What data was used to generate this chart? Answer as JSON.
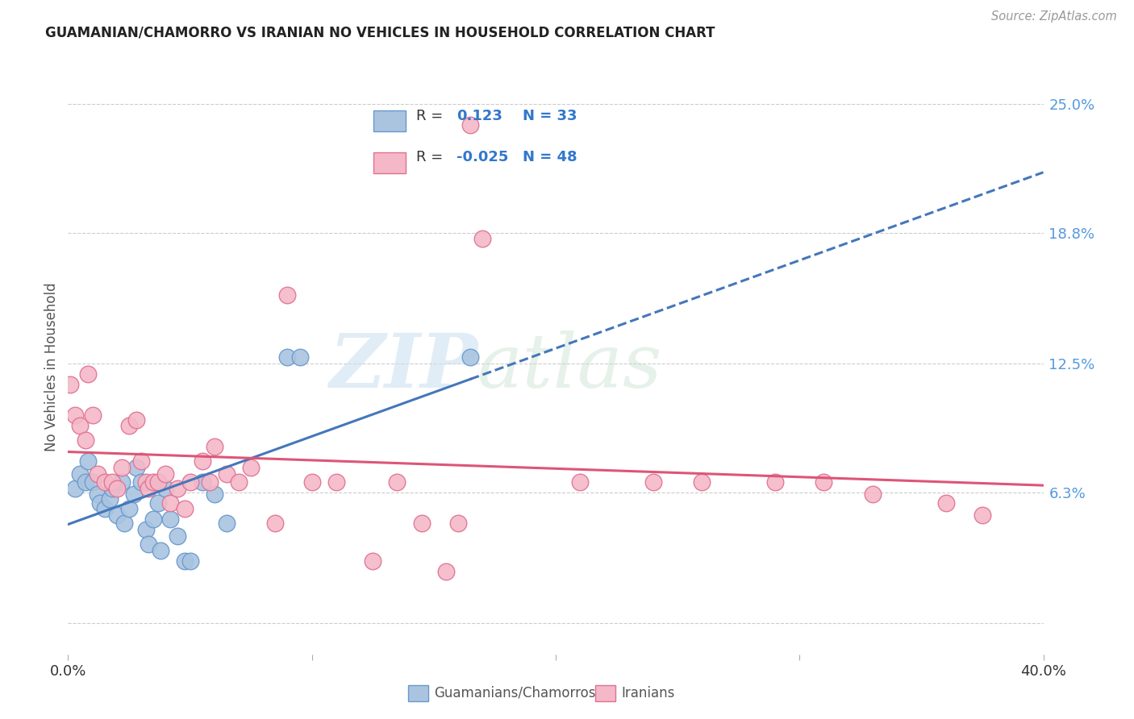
{
  "title": "GUAMANIAN/CHAMORRO VS IRANIAN NO VEHICLES IN HOUSEHOLD CORRELATION CHART",
  "source": "Source: ZipAtlas.com",
  "ylabel": "No Vehicles in Household",
  "yticks": [
    0.0,
    0.063,
    0.125,
    0.188,
    0.25
  ],
  "ytick_labels": [
    "",
    "6.3%",
    "12.5%",
    "18.8%",
    "25.0%"
  ],
  "watermark_zip": "ZIP",
  "watermark_atlas": "atlas",
  "blue_color": "#aac4e0",
  "pink_color": "#f4b8c8",
  "blue_edge_color": "#6699cc",
  "pink_edge_color": "#e07090",
  "blue_line_color": "#4477bb",
  "pink_line_color": "#dd5577",
  "xmin": 0.0,
  "xmax": 0.4,
  "ymin": -0.015,
  "ymax": 0.262,
  "background_color": "#ffffff",
  "grid_color": "#cccccc",
  "blue_scatter": [
    [
      0.003,
      0.065
    ],
    [
      0.005,
      0.072
    ],
    [
      0.007,
      0.068
    ],
    [
      0.008,
      0.078
    ],
    [
      0.01,
      0.068
    ],
    [
      0.012,
      0.062
    ],
    [
      0.013,
      0.058
    ],
    [
      0.015,
      0.055
    ],
    [
      0.017,
      0.06
    ],
    [
      0.018,
      0.065
    ],
    [
      0.02,
      0.052
    ],
    [
      0.022,
      0.068
    ],
    [
      0.023,
      0.048
    ],
    [
      0.025,
      0.055
    ],
    [
      0.027,
      0.062
    ],
    [
      0.028,
      0.075
    ],
    [
      0.03,
      0.068
    ],
    [
      0.032,
      0.045
    ],
    [
      0.033,
      0.038
    ],
    [
      0.035,
      0.05
    ],
    [
      0.037,
      0.058
    ],
    [
      0.038,
      0.035
    ],
    [
      0.04,
      0.065
    ],
    [
      0.042,
      0.05
    ],
    [
      0.045,
      0.042
    ],
    [
      0.048,
      0.03
    ],
    [
      0.05,
      0.03
    ],
    [
      0.055,
      0.068
    ],
    [
      0.06,
      0.062
    ],
    [
      0.065,
      0.048
    ],
    [
      0.09,
      0.128
    ],
    [
      0.095,
      0.128
    ],
    [
      0.165,
      0.128
    ]
  ],
  "pink_scatter": [
    [
      0.001,
      0.115
    ],
    [
      0.003,
      0.1
    ],
    [
      0.005,
      0.095
    ],
    [
      0.007,
      0.088
    ],
    [
      0.008,
      0.12
    ],
    [
      0.01,
      0.1
    ],
    [
      0.012,
      0.072
    ],
    [
      0.015,
      0.068
    ],
    [
      0.018,
      0.068
    ],
    [
      0.02,
      0.065
    ],
    [
      0.022,
      0.075
    ],
    [
      0.025,
      0.095
    ],
    [
      0.028,
      0.098
    ],
    [
      0.03,
      0.078
    ],
    [
      0.032,
      0.068
    ],
    [
      0.033,
      0.065
    ],
    [
      0.035,
      0.068
    ],
    [
      0.037,
      0.068
    ],
    [
      0.04,
      0.072
    ],
    [
      0.042,
      0.058
    ],
    [
      0.045,
      0.065
    ],
    [
      0.048,
      0.055
    ],
    [
      0.05,
      0.068
    ],
    [
      0.055,
      0.078
    ],
    [
      0.058,
      0.068
    ],
    [
      0.06,
      0.085
    ],
    [
      0.065,
      0.072
    ],
    [
      0.07,
      0.068
    ],
    [
      0.075,
      0.075
    ],
    [
      0.085,
      0.048
    ],
    [
      0.09,
      0.158
    ],
    [
      0.1,
      0.068
    ],
    [
      0.11,
      0.068
    ],
    [
      0.125,
      0.03
    ],
    [
      0.135,
      0.068
    ],
    [
      0.145,
      0.048
    ],
    [
      0.155,
      0.025
    ],
    [
      0.16,
      0.048
    ],
    [
      0.165,
      0.24
    ],
    [
      0.17,
      0.185
    ],
    [
      0.21,
      0.068
    ],
    [
      0.24,
      0.068
    ],
    [
      0.26,
      0.068
    ],
    [
      0.29,
      0.068
    ],
    [
      0.31,
      0.068
    ],
    [
      0.33,
      0.062
    ],
    [
      0.36,
      0.058
    ],
    [
      0.375,
      0.052
    ]
  ],
  "legend_R_blue": "0.123",
  "legend_N_blue": "33",
  "legend_R_pink": "-0.025",
  "legend_N_pink": "48"
}
